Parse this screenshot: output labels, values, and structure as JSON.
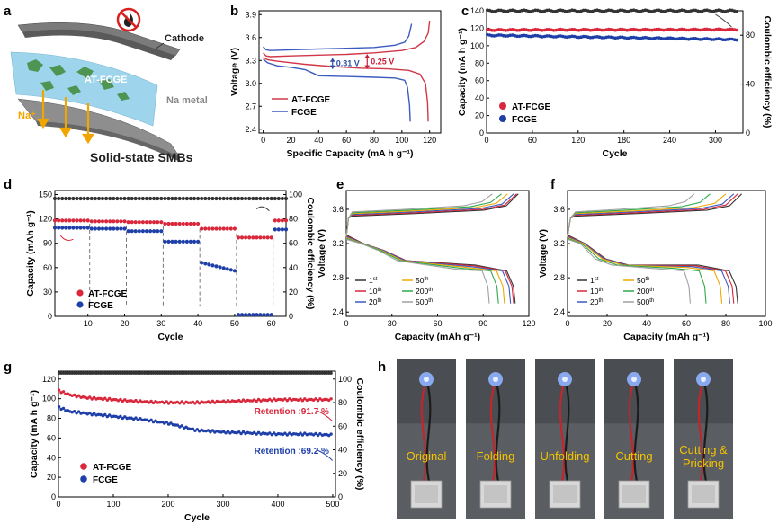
{
  "panel_labels": [
    "a",
    "b",
    "c",
    "d",
    "e",
    "f",
    "g",
    "h"
  ],
  "schematic": {
    "cathode_label": "Cathode",
    "electrolyte_label": "AT-FCGE",
    "anode_label": "Na metal",
    "ion_label": "Na⁺",
    "title": "Solid-state SMBs",
    "no_fire_icon": "no-fire-icon"
  },
  "photos": {
    "labels": [
      "Original",
      "Folding",
      "Unfolding",
      "Cutting",
      "Cutting &\nPricking"
    ]
  },
  "chart_data": [
    {
      "id": "b",
      "type": "line",
      "xlabel": "Specific Capacity (mA h g⁻¹)",
      "ylabel": "Voltage (V)",
      "xlim": [
        -3,
        128
      ],
      "ylim": [
        2.35,
        3.95
      ],
      "xticks": [
        0,
        20,
        40,
        60,
        80,
        100,
        120
      ],
      "yticks": [
        2.4,
        2.7,
        3.0,
        3.3,
        3.6,
        3.9
      ],
      "annotations": [
        {
          "text": "0.31 V",
          "x": 50,
          "y1": 3.33,
          "y2": 3.19,
          "color": "#2b4fa8"
        },
        {
          "text": "0.25 V",
          "x": 75,
          "y1": 3.38,
          "y2": 3.19,
          "color": "#c8203a"
        }
      ],
      "series": [
        {
          "name": "AT-FCGE",
          "color": "#d0384a",
          "charge": [
            [
              0,
              3.4
            ],
            [
              2,
              3.36
            ],
            [
              5,
              3.35
            ],
            [
              20,
              3.36
            ],
            [
              40,
              3.37
            ],
            [
              60,
              3.38
            ],
            [
              80,
              3.4
            ],
            [
              100,
              3.43
            ],
            [
              110,
              3.47
            ],
            [
              116,
              3.55
            ],
            [
              119,
              3.66
            ],
            [
              120,
              3.82
            ]
          ],
          "discharge": [
            [
              0,
              3.34
            ],
            [
              3,
              3.31
            ],
            [
              10,
              3.29
            ],
            [
              30,
              3.25
            ],
            [
              50,
              3.22
            ],
            [
              70,
              3.2
            ],
            [
              90,
              3.19
            ],
            [
              105,
              3.17
            ],
            [
              113,
              3.12
            ],
            [
              117,
              3.0
            ],
            [
              118.5,
              2.75
            ],
            [
              119,
              2.5
            ]
          ]
        },
        {
          "name": "FCGE",
          "color": "#3a5bbf",
          "charge": [
            [
              0,
              3.48
            ],
            [
              2,
              3.44
            ],
            [
              5,
              3.43
            ],
            [
              20,
              3.44
            ],
            [
              40,
              3.45
            ],
            [
              60,
              3.46
            ],
            [
              80,
              3.47
            ],
            [
              95,
              3.5
            ],
            [
              102,
              3.54
            ],
            [
              105,
              3.62
            ],
            [
              107,
              3.78
            ]
          ],
          "discharge": [
            [
              0,
              3.32
            ],
            [
              3,
              3.27
            ],
            [
              10,
              3.23
            ],
            [
              20,
              3.21
            ],
            [
              30,
              3.18
            ],
            [
              35,
              3.14
            ],
            [
              40,
              3.1
            ],
            [
              60,
              3.09
            ],
            [
              80,
              3.08
            ],
            [
              95,
              3.07
            ],
            [
              102,
              3.04
            ],
            [
              104,
              2.95
            ],
            [
              105.5,
              2.72
            ],
            [
              106,
              2.5
            ]
          ]
        }
      ]
    },
    {
      "id": "c",
      "type": "scatter",
      "xlabel": "Cycle",
      "ylabel": "Capacity (mA h g⁻¹)",
      "y2label": "Coulombic efficiency (%)",
      "xlim": [
        0,
        336
      ],
      "ylim": [
        0,
        140
      ],
      "y2lim": [
        0,
        100
      ],
      "xticks": [
        0,
        60,
        120,
        180,
        240,
        300
      ],
      "yticks": [
        0,
        20,
        40,
        60,
        80,
        100,
        120,
        140
      ],
      "y2ticks": [
        0,
        40,
        80
      ],
      "series": [
        {
          "name": "AT-FCGE",
          "color": "#d9283c",
          "axis": "left",
          "start": 118,
          "end": 118.5
        },
        {
          "name": "FCGE",
          "color": "#1f3fa8",
          "axis": "left",
          "start": 112,
          "end": 107
        },
        {
          "name": "CE",
          "color": "#333333",
          "axis": "right",
          "start": 100,
          "end": 100
        }
      ]
    },
    {
      "id": "d",
      "type": "scatter",
      "xlabel": "Cycle",
      "ylabel": "Capacity (mAh g⁻¹)",
      "y2label": "Coulombic efficiency (%)",
      "xlim": [
        1,
        64
      ],
      "ylim": [
        0,
        155
      ],
      "y2lim": [
        0,
        103.3
      ],
      "xticks": [
        10,
        20,
        30,
        40,
        50,
        60
      ],
      "yticks": [
        0,
        30,
        60,
        90,
        120,
        150
      ],
      "y2ticks": [
        0,
        20,
        40,
        60,
        80,
        100
      ],
      "series": [
        {
          "name": "AT-FCGE",
          "color": "#d9283c",
          "segments": [
            [
              1,
              10,
              118
            ],
            [
              11,
              20,
              117
            ],
            [
              21,
              30,
              116
            ],
            [
              31,
              40,
              114
            ],
            [
              41,
              50,
              108
            ],
            [
              51,
              60,
              97
            ],
            [
              61,
              64,
              118
            ]
          ]
        },
        {
          "name": "FCGE",
          "color": "#1f3fa8",
          "segments": [
            [
              1,
              10,
              109
            ],
            [
              11,
              20,
              108
            ],
            [
              21,
              30,
              105
            ],
            [
              31,
              40,
              92
            ],
            [
              41,
              50,
              60
            ],
            [
              51,
              60,
              2
            ],
            [
              61,
              64,
              107
            ]
          ]
        },
        {
          "name": "CE",
          "color": "#333333",
          "segments": [
            [
              1,
              64,
              145
            ]
          ]
        }
      ]
    },
    {
      "id": "e",
      "type": "line",
      "xlabel": "Capacity (mAh g⁻¹)",
      "ylabel": "Voltage (V)",
      "xlim": [
        0,
        120
      ],
      "ylim": [
        2.35,
        3.82
      ],
      "xticks": [
        0,
        30,
        60,
        90,
        120
      ],
      "yticks": [
        2.4,
        2.8,
        3.2,
        3.6
      ],
      "legend": [
        "1st",
        "10th",
        "20th",
        "50th",
        "200th",
        "500th"
      ],
      "series": [
        {
          "name": "1st",
          "color": "#333333",
          "cap": 113
        },
        {
          "name": "10th",
          "color": "#d9283c",
          "cap": 112
        },
        {
          "name": "20th",
          "color": "#3a5bbf",
          "cap": 110
        },
        {
          "name": "50th",
          "color": "#f0a800",
          "cap": 106
        },
        {
          "name": "200th",
          "color": "#2fa84a",
          "cap": 102
        },
        {
          "name": "500th",
          "color": "#a0a0a0",
          "cap": 96
        }
      ]
    },
    {
      "id": "f",
      "type": "line",
      "xlabel": "Capacity (mAh g⁻¹)",
      "ylabel": "Voltage (V)",
      "xlim": [
        0,
        100
      ],
      "ylim": [
        2.35,
        3.82
      ],
      "xticks": [
        0,
        20,
        40,
        60,
        80,
        100
      ],
      "yticks": [
        2.4,
        2.8,
        3.2,
        3.6
      ],
      "legend": [
        "1st",
        "10th",
        "20th",
        "50th",
        "200th",
        "500th"
      ],
      "series": [
        {
          "name": "1st",
          "color": "#333333",
          "cap": 88
        },
        {
          "name": "10th",
          "color": "#d9283c",
          "cap": 86
        },
        {
          "name": "20th",
          "color": "#3a5bbf",
          "cap": 84
        },
        {
          "name": "50th",
          "color": "#f0a800",
          "cap": 80
        },
        {
          "name": "200th",
          "color": "#2fa84a",
          "cap": 72
        },
        {
          "name": "500th",
          "color": "#a0a0a0",
          "cap": 64
        }
      ]
    },
    {
      "id": "g",
      "type": "scatter",
      "xlabel": "Cycle",
      "ylabel": "Capacity (mA h g⁻¹)",
      "y2label": "Coulombic efficiency (%)",
      "xlim": [
        0,
        505
      ],
      "ylim": [
        0,
        128
      ],
      "y2lim": [
        0,
        106.7
      ],
      "xticks": [
        0,
        100,
        200,
        300,
        400,
        500
      ],
      "yticks": [
        0,
        20,
        40,
        60,
        80,
        100,
        120
      ],
      "y2ticks": [
        0,
        20,
        40,
        60,
        80,
        100
      ],
      "annotations": [
        {
          "text": "Retention :91.7 %",
          "color": "#d9283c"
        },
        {
          "text": "Retention :69.2 %",
          "color": "#1f3fa8"
        }
      ],
      "series": [
        {
          "name": "AT-FCGE",
          "color": "#d9283c",
          "points": [
            [
              1,
              108
            ],
            [
              20,
              104
            ],
            [
              50,
              101
            ],
            [
              100,
              99
            ],
            [
              150,
              97
            ],
            [
              200,
              96
            ],
            [
              250,
              96
            ],
            [
              300,
              97
            ],
            [
              350,
              98
            ],
            [
              400,
              99
            ],
            [
              450,
              99
            ],
            [
              500,
              99
            ]
          ]
        },
        {
          "name": "FCGE",
          "color": "#1f3fa8",
          "points": [
            [
              1,
              91
            ],
            [
              20,
              87
            ],
            [
              50,
              85
            ],
            [
              100,
              82
            ],
            [
              150,
              79
            ],
            [
              200,
              75
            ],
            [
              250,
              68
            ],
            [
              300,
              66
            ],
            [
              350,
              65
            ],
            [
              400,
              64
            ],
            [
              450,
              64
            ],
            [
              500,
              63
            ]
          ]
        },
        {
          "name": "CE",
          "color": "#333333",
          "points": [
            [
              1,
              126
            ],
            [
              500,
              126
            ]
          ]
        }
      ]
    }
  ]
}
